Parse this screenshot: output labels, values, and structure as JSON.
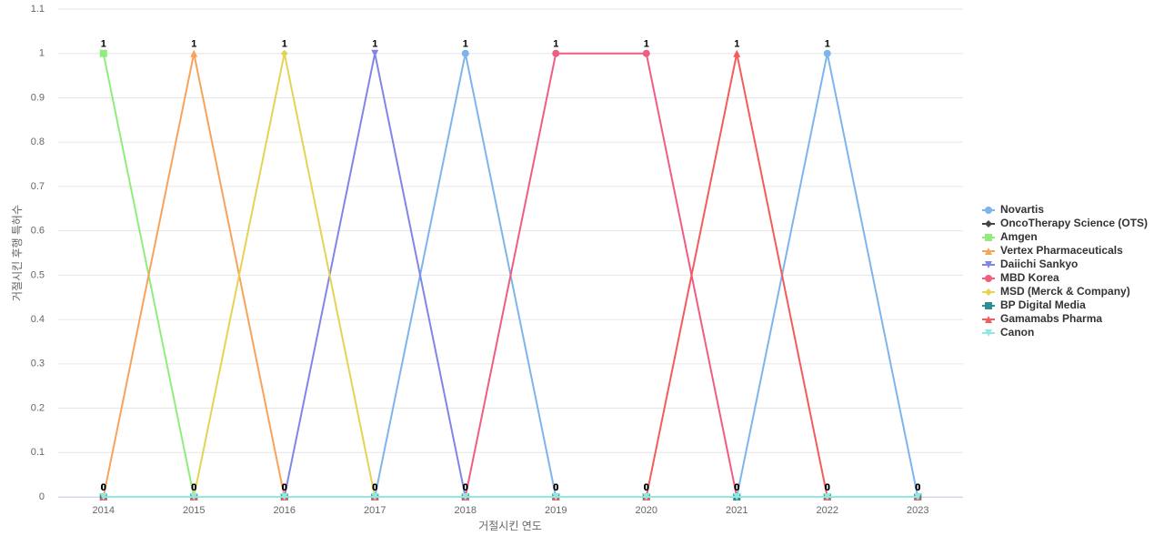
{
  "chart_data": {
    "type": "line",
    "x_label": "거절시킨 연도",
    "y_label": "거절시킨 후행 특허수",
    "categories": [
      "2014",
      "2015",
      "2016",
      "2017",
      "2018",
      "2019",
      "2020",
      "2021",
      "2022",
      "2023"
    ],
    "ylim": [
      0,
      1.1
    ],
    "yticks": [
      0,
      0.1,
      0.2,
      0.3,
      0.4,
      0.5,
      0.6,
      0.7,
      0.8,
      0.9,
      1,
      1.1
    ],
    "grid": true,
    "legend": "right",
    "series": [
      {
        "name": "Novartis",
        "color": "#7cb5ec",
        "marker": "circle",
        "values": [
          0,
          0,
          0,
          0,
          1,
          0,
          0,
          0,
          1,
          0
        ]
      },
      {
        "name": "OncoTherapy Science (OTS)",
        "color": "#434348",
        "marker": "diamond",
        "values": [
          0,
          0,
          0,
          0,
          0,
          0,
          0,
          0,
          0,
          0
        ]
      },
      {
        "name": "Amgen",
        "color": "#90ed7d",
        "marker": "square",
        "values": [
          1,
          0,
          0,
          0,
          0,
          0,
          0,
          0,
          0,
          0
        ]
      },
      {
        "name": "Vertex Pharmaceuticals",
        "color": "#f7a35c",
        "marker": "triangle",
        "values": [
          0,
          1,
          0,
          0,
          0,
          0,
          0,
          0,
          0,
          0
        ]
      },
      {
        "name": "Daiichi Sankyo",
        "color": "#8085e9",
        "marker": "triangle-down",
        "values": [
          0,
          0,
          0,
          1,
          0,
          0,
          0,
          0,
          0,
          0
        ]
      },
      {
        "name": "MBD Korea",
        "color": "#f15c80",
        "marker": "circle",
        "values": [
          0,
          0,
          0,
          0,
          0,
          1,
          1,
          0,
          0,
          0
        ]
      },
      {
        "name": "MSD (Merck & Company)",
        "color": "#e4d354",
        "marker": "diamond",
        "values": [
          0,
          0,
          1,
          0,
          0,
          0,
          0,
          0,
          0,
          0
        ]
      },
      {
        "name": "BP Digital Media",
        "color": "#2b908f",
        "marker": "square",
        "values": [
          0,
          0,
          0,
          0,
          0,
          0,
          0,
          0,
          0,
          0
        ]
      },
      {
        "name": "Gamamabs Pharma",
        "color": "#f45b5b",
        "marker": "triangle",
        "values": [
          0,
          0,
          0,
          0,
          0,
          0,
          0,
          1,
          0,
          0
        ]
      },
      {
        "name": "Canon",
        "color": "#91e8e1",
        "marker": "triangle-down",
        "values": [
          0,
          0,
          0,
          0,
          0,
          0,
          0,
          0,
          0,
          0
        ]
      }
    ]
  }
}
